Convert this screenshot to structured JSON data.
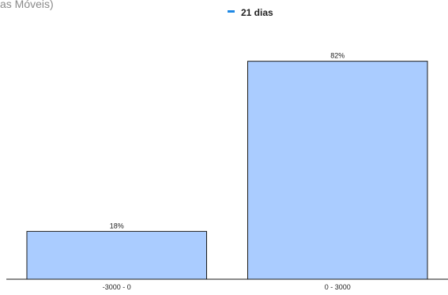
{
  "header": {
    "subtitle_fragment": "as Móveis)"
  },
  "legend": {
    "label": "21 dias",
    "color": "#1e88e5"
  },
  "chart_data": {
    "type": "bar",
    "categories": [
      "-3000 - 0",
      "0 - 3000"
    ],
    "series": [
      {
        "name": "21 dias",
        "values": [
          18,
          82
        ],
        "value_labels": [
          "18%",
          "82%"
        ]
      }
    ],
    "ylim": [
      0,
      100
    ],
    "bar_color": "#aaccff",
    "bar_stroke": "#1a1a1a",
    "grid": false
  }
}
